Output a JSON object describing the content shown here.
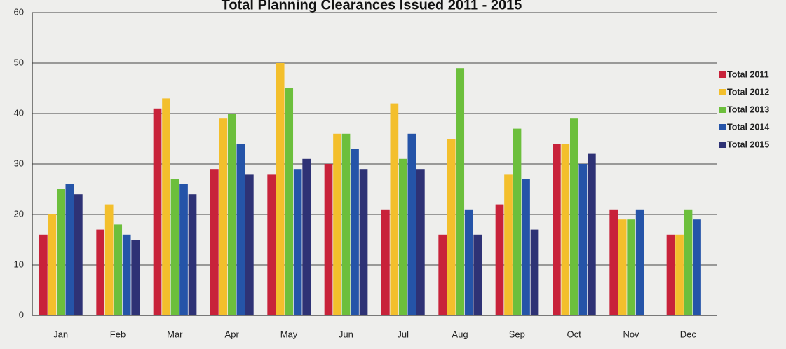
{
  "chart_data": {
    "type": "bar",
    "title": "Total Planning Clearances Issued 2011 - 2015",
    "xlabel": "",
    "ylabel": "",
    "ylim": [
      0,
      60
    ],
    "yticks": [
      0,
      10,
      20,
      30,
      40,
      50,
      60
    ],
    "grid": true,
    "legend_position": "right",
    "categories": [
      "Jan",
      "Feb",
      "Mar",
      "Apr",
      "May",
      "Jun",
      "Jul",
      "Aug",
      "Sep",
      "Oct",
      "Nov",
      "Dec"
    ],
    "series": [
      {
        "name": "Total 2011",
        "color": "#c8223a",
        "values": [
          16,
          17,
          41,
          29,
          28,
          30,
          21,
          16,
          22,
          34,
          21,
          16
        ]
      },
      {
        "name": "Total 2012",
        "color": "#f3bf2c",
        "values": [
          20,
          22,
          43,
          39,
          50,
          36,
          42,
          35,
          28,
          34,
          19,
          16
        ]
      },
      {
        "name": "Total 2013",
        "color": "#6cbf3c",
        "values": [
          25,
          18,
          27,
          40,
          45,
          36,
          31,
          49,
          37,
          39,
          19,
          21
        ]
      },
      {
        "name": "Total 2014",
        "color": "#2554a8",
        "values": [
          26,
          16,
          26,
          34,
          29,
          33,
          36,
          21,
          27,
          30,
          21,
          19
        ]
      },
      {
        "name": "Total 2015",
        "color": "#2e3275",
        "values": [
          24,
          15,
          24,
          28,
          31,
          29,
          29,
          16,
          17,
          32,
          null,
          null
        ]
      }
    ]
  }
}
